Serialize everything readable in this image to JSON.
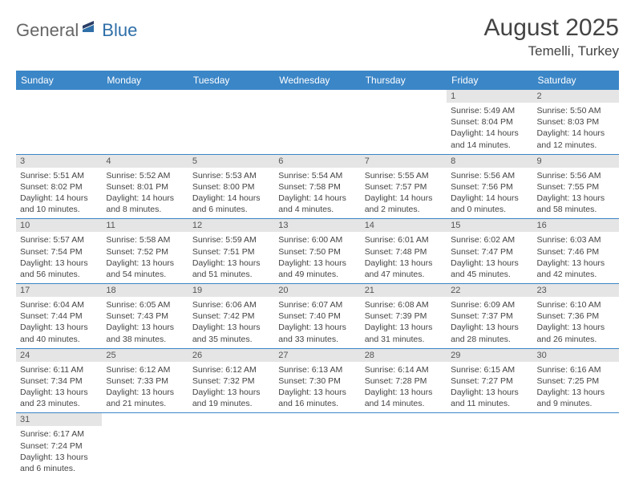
{
  "logo": {
    "general": "General",
    "blue": "Blue"
  },
  "title": {
    "month_year": "August 2025",
    "location": "Temelli, Turkey"
  },
  "colors": {
    "header_bg": "#3b86c7",
    "header_text": "#ffffff",
    "daynum_bg": "#e5e5e5",
    "border": "#3b86c7",
    "logo_blue": "#2f6fa8"
  },
  "daynames": [
    "Sunday",
    "Monday",
    "Tuesday",
    "Wednesday",
    "Thursday",
    "Friday",
    "Saturday"
  ],
  "weeks": [
    [
      null,
      null,
      null,
      null,
      null,
      {
        "n": "1",
        "sunrise": "Sunrise: 5:49 AM",
        "sunset": "Sunset: 8:04 PM",
        "daylight": "Daylight: 14 hours and 14 minutes."
      },
      {
        "n": "2",
        "sunrise": "Sunrise: 5:50 AM",
        "sunset": "Sunset: 8:03 PM",
        "daylight": "Daylight: 14 hours and 12 minutes."
      }
    ],
    [
      {
        "n": "3",
        "sunrise": "Sunrise: 5:51 AM",
        "sunset": "Sunset: 8:02 PM",
        "daylight": "Daylight: 14 hours and 10 minutes."
      },
      {
        "n": "4",
        "sunrise": "Sunrise: 5:52 AM",
        "sunset": "Sunset: 8:01 PM",
        "daylight": "Daylight: 14 hours and 8 minutes."
      },
      {
        "n": "5",
        "sunrise": "Sunrise: 5:53 AM",
        "sunset": "Sunset: 8:00 PM",
        "daylight": "Daylight: 14 hours and 6 minutes."
      },
      {
        "n": "6",
        "sunrise": "Sunrise: 5:54 AM",
        "sunset": "Sunset: 7:58 PM",
        "daylight": "Daylight: 14 hours and 4 minutes."
      },
      {
        "n": "7",
        "sunrise": "Sunrise: 5:55 AM",
        "sunset": "Sunset: 7:57 PM",
        "daylight": "Daylight: 14 hours and 2 minutes."
      },
      {
        "n": "8",
        "sunrise": "Sunrise: 5:56 AM",
        "sunset": "Sunset: 7:56 PM",
        "daylight": "Daylight: 14 hours and 0 minutes."
      },
      {
        "n": "9",
        "sunrise": "Sunrise: 5:56 AM",
        "sunset": "Sunset: 7:55 PM",
        "daylight": "Daylight: 13 hours and 58 minutes."
      }
    ],
    [
      {
        "n": "10",
        "sunrise": "Sunrise: 5:57 AM",
        "sunset": "Sunset: 7:54 PM",
        "daylight": "Daylight: 13 hours and 56 minutes."
      },
      {
        "n": "11",
        "sunrise": "Sunrise: 5:58 AM",
        "sunset": "Sunset: 7:52 PM",
        "daylight": "Daylight: 13 hours and 54 minutes."
      },
      {
        "n": "12",
        "sunrise": "Sunrise: 5:59 AM",
        "sunset": "Sunset: 7:51 PM",
        "daylight": "Daylight: 13 hours and 51 minutes."
      },
      {
        "n": "13",
        "sunrise": "Sunrise: 6:00 AM",
        "sunset": "Sunset: 7:50 PM",
        "daylight": "Daylight: 13 hours and 49 minutes."
      },
      {
        "n": "14",
        "sunrise": "Sunrise: 6:01 AM",
        "sunset": "Sunset: 7:48 PM",
        "daylight": "Daylight: 13 hours and 47 minutes."
      },
      {
        "n": "15",
        "sunrise": "Sunrise: 6:02 AM",
        "sunset": "Sunset: 7:47 PM",
        "daylight": "Daylight: 13 hours and 45 minutes."
      },
      {
        "n": "16",
        "sunrise": "Sunrise: 6:03 AM",
        "sunset": "Sunset: 7:46 PM",
        "daylight": "Daylight: 13 hours and 42 minutes."
      }
    ],
    [
      {
        "n": "17",
        "sunrise": "Sunrise: 6:04 AM",
        "sunset": "Sunset: 7:44 PM",
        "daylight": "Daylight: 13 hours and 40 minutes."
      },
      {
        "n": "18",
        "sunrise": "Sunrise: 6:05 AM",
        "sunset": "Sunset: 7:43 PM",
        "daylight": "Daylight: 13 hours and 38 minutes."
      },
      {
        "n": "19",
        "sunrise": "Sunrise: 6:06 AM",
        "sunset": "Sunset: 7:42 PM",
        "daylight": "Daylight: 13 hours and 35 minutes."
      },
      {
        "n": "20",
        "sunrise": "Sunrise: 6:07 AM",
        "sunset": "Sunset: 7:40 PM",
        "daylight": "Daylight: 13 hours and 33 minutes."
      },
      {
        "n": "21",
        "sunrise": "Sunrise: 6:08 AM",
        "sunset": "Sunset: 7:39 PM",
        "daylight": "Daylight: 13 hours and 31 minutes."
      },
      {
        "n": "22",
        "sunrise": "Sunrise: 6:09 AM",
        "sunset": "Sunset: 7:37 PM",
        "daylight": "Daylight: 13 hours and 28 minutes."
      },
      {
        "n": "23",
        "sunrise": "Sunrise: 6:10 AM",
        "sunset": "Sunset: 7:36 PM",
        "daylight": "Daylight: 13 hours and 26 minutes."
      }
    ],
    [
      {
        "n": "24",
        "sunrise": "Sunrise: 6:11 AM",
        "sunset": "Sunset: 7:34 PM",
        "daylight": "Daylight: 13 hours and 23 minutes."
      },
      {
        "n": "25",
        "sunrise": "Sunrise: 6:12 AM",
        "sunset": "Sunset: 7:33 PM",
        "daylight": "Daylight: 13 hours and 21 minutes."
      },
      {
        "n": "26",
        "sunrise": "Sunrise: 6:12 AM",
        "sunset": "Sunset: 7:32 PM",
        "daylight": "Daylight: 13 hours and 19 minutes."
      },
      {
        "n": "27",
        "sunrise": "Sunrise: 6:13 AM",
        "sunset": "Sunset: 7:30 PM",
        "daylight": "Daylight: 13 hours and 16 minutes."
      },
      {
        "n": "28",
        "sunrise": "Sunrise: 6:14 AM",
        "sunset": "Sunset: 7:28 PM",
        "daylight": "Daylight: 13 hours and 14 minutes."
      },
      {
        "n": "29",
        "sunrise": "Sunrise: 6:15 AM",
        "sunset": "Sunset: 7:27 PM",
        "daylight": "Daylight: 13 hours and 11 minutes."
      },
      {
        "n": "30",
        "sunrise": "Sunrise: 6:16 AM",
        "sunset": "Sunset: 7:25 PM",
        "daylight": "Daylight: 13 hours and 9 minutes."
      }
    ],
    [
      {
        "n": "31",
        "sunrise": "Sunrise: 6:17 AM",
        "sunset": "Sunset: 7:24 PM",
        "daylight": "Daylight: 13 hours and 6 minutes."
      },
      null,
      null,
      null,
      null,
      null,
      null
    ]
  ]
}
